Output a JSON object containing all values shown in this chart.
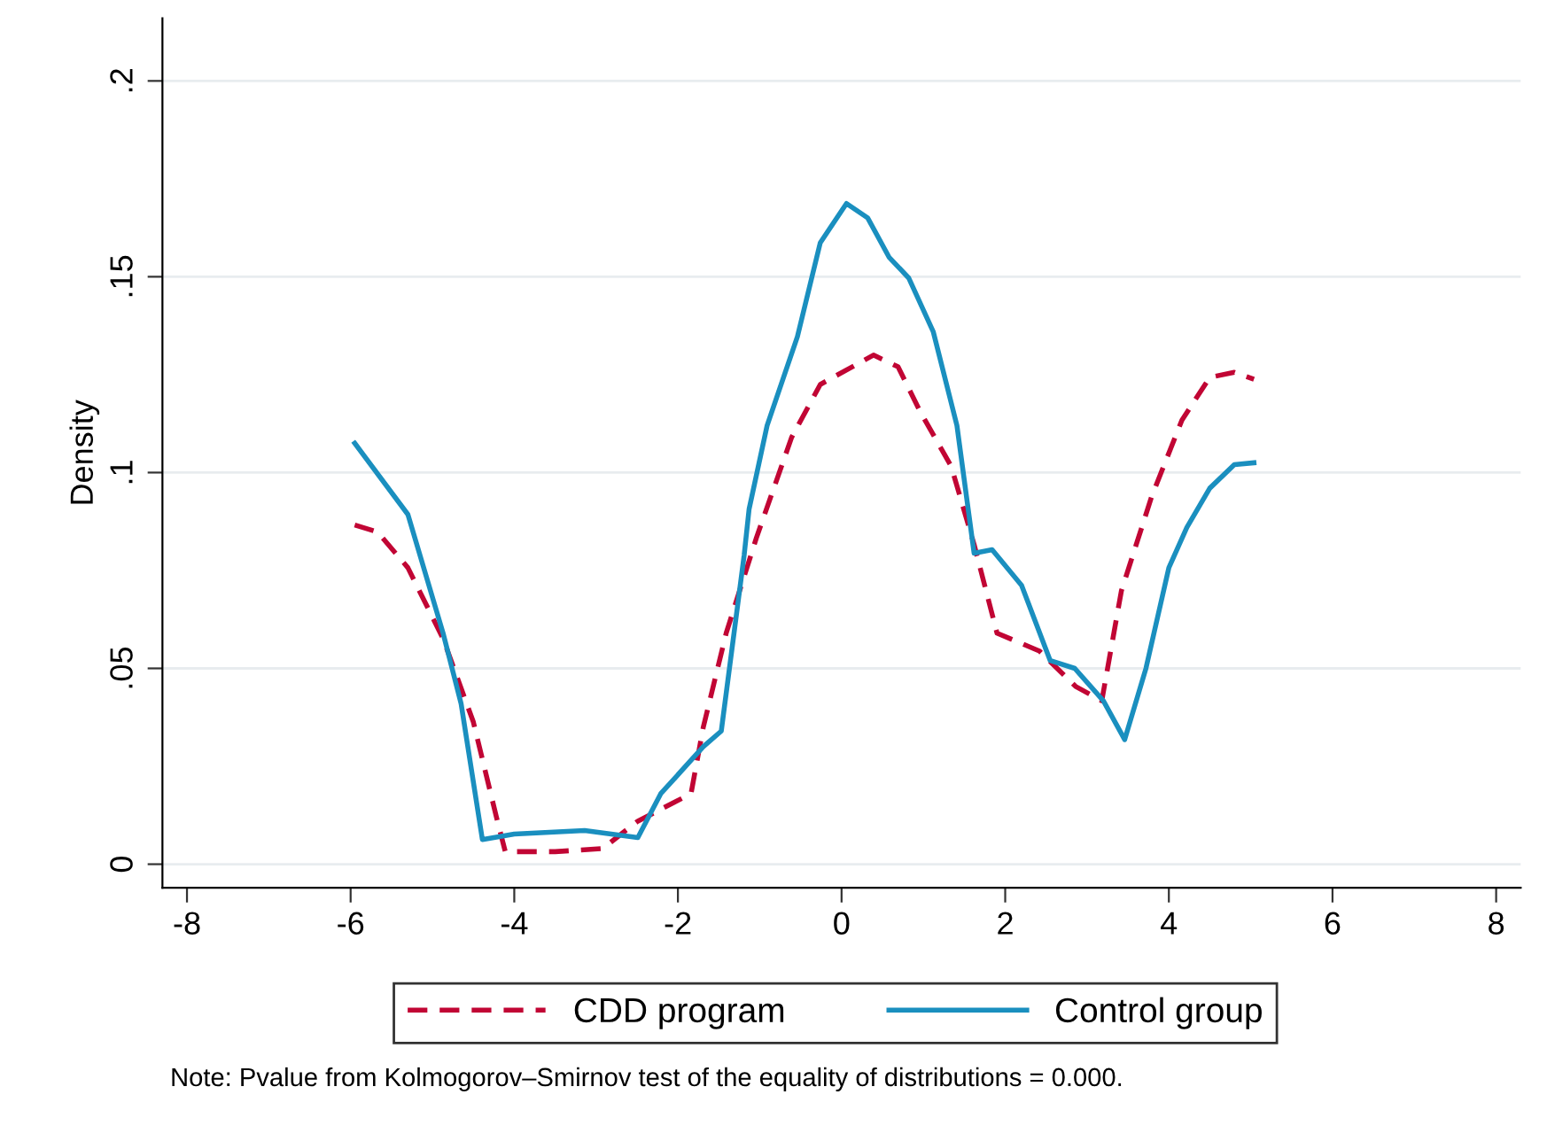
{
  "chart_data": {
    "type": "line",
    "ylabel": "Density",
    "xlim": [
      -8.3,
      8.3
    ],
    "ylim": [
      -0.006,
      0.216
    ],
    "xticks": [
      -8,
      -6,
      -4,
      -2,
      0,
      2,
      4,
      6,
      8
    ],
    "yticks": [
      {
        "value": 0,
        "label": "0"
      },
      {
        "value": 0.05,
        "label": ".05"
      },
      {
        "value": 0.1,
        "label": ".1"
      },
      {
        "value": 0.15,
        "label": ".15"
      },
      {
        "value": 0.2,
        "label": ".2"
      }
    ],
    "grid": "y",
    "legend": "bottom",
    "marker": "none",
    "annotations": [
      "Note: Pvalue from Kolmogorov–Smirnov test of the equality of distributions = 0.000."
    ],
    "series": [
      {
        "name": "CDD program",
        "color": "#c10534",
        "line_style": "dashed",
        "x": [
          -5.95,
          -5.67,
          -5.3,
          -4.87,
          -4.5,
          -4.22,
          -4.11,
          -3.5,
          -2.92,
          -2.49,
          -1.84,
          -1.69,
          -1.41,
          -1.04,
          -0.61,
          -0.26,
          0.39,
          0.69,
          0.97,
          1.34,
          1.62,
          1.9,
          2.42,
          2.86,
          3.18,
          3.42,
          3.79,
          4.16,
          4.5,
          4.8,
          5.04
        ],
        "values": [
          0.0866,
          0.0848,
          0.0757,
          0.0576,
          0.0363,
          0.0122,
          0.0032,
          0.0032,
          0.004,
          0.011,
          0.018,
          0.035,
          0.059,
          0.0834,
          0.109,
          0.1225,
          0.13,
          0.127,
          0.1152,
          0.1016,
          0.0816,
          0.059,
          0.0544,
          0.0454,
          0.0417,
          0.0698,
          0.0939,
          0.1134,
          0.1243,
          0.1256,
          0.1238
        ]
      },
      {
        "name": "Control group",
        "color": "#1a8fbf",
        "line_style": "solid",
        "x": [
          -5.95,
          -5.3,
          -4.87,
          -4.65,
          -4.39,
          -4.0,
          -3.14,
          -2.49,
          -2.21,
          -1.69,
          -1.47,
          -1.19,
          -1.13,
          -0.91,
          -0.54,
          -0.26,
          0.06,
          0.32,
          0.58,
          0.82,
          1.12,
          1.41,
          1.62,
          1.84,
          2.2,
          2.55,
          2.85,
          3.2,
          3.46,
          3.72,
          4.0,
          4.22,
          4.5,
          4.8,
          5.04
        ],
        "values": [
          0.1075,
          0.0893,
          0.059,
          0.041,
          0.0063,
          0.0077,
          0.0086,
          0.0068,
          0.018,
          0.03,
          0.034,
          0.079,
          0.0907,
          0.112,
          0.1347,
          0.1587,
          0.1687,
          0.165,
          0.155,
          0.1497,
          0.136,
          0.112,
          0.0794,
          0.0803,
          0.0712,
          0.052,
          0.05,
          0.0417,
          0.0318,
          0.05,
          0.0757,
          0.086,
          0.096,
          0.102,
          0.1025
        ]
      }
    ]
  }
}
